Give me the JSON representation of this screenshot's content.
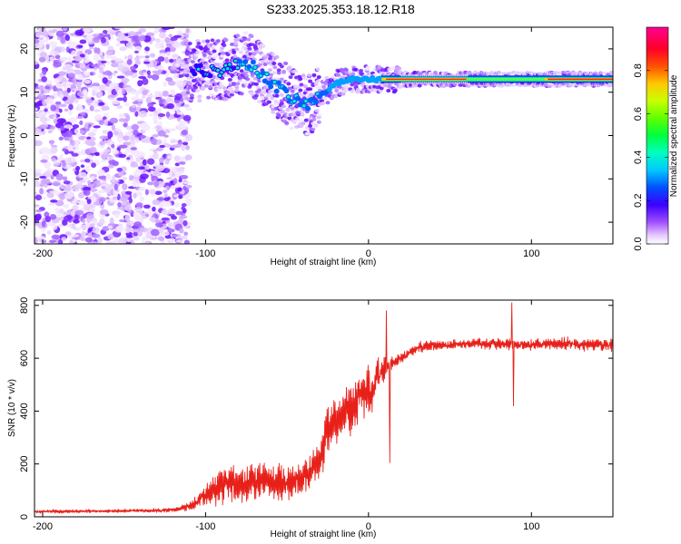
{
  "title": "S233.2025.353.18.12.R18",
  "colors": {
    "snr_line": "#e8201a",
    "axis": "#000000",
    "background": "#ffffff",
    "scatter": [
      "#ffffff",
      "#f0d8ff",
      "#d8a8ff",
      "#a860ff",
      "#7a14ff",
      "#4000ff",
      "#0040ff",
      "#00c0ff",
      "#00ff80",
      "#80ff00",
      "#ffd000",
      "#ff4000",
      "#ff0040",
      "#ff00c0"
    ]
  },
  "chart_data": [
    {
      "name": "spectrogram",
      "type": "heatmap",
      "xlabel": "Height of straight line (km)",
      "ylabel": "Frequency (Hz)",
      "xlim": [
        -205,
        150
      ],
      "ylim": [
        -25,
        25
      ],
      "x_ticks": [
        -200,
        -100,
        0,
        100
      ],
      "y_ticks": [
        -20,
        -10,
        0,
        10,
        20
      ],
      "colorbar": {
        "label": "Normalized spectral amplitude",
        "range": [
          0,
          1
        ],
        "ticks": [
          "0.0",
          "0.2",
          "0.4",
          "0.6",
          "0.8"
        ]
      },
      "features": [
        {
          "label": "broadband noise",
          "x_range": [
            -205,
            -110
          ],
          "freq_range": [
            -25,
            25
          ],
          "amplitude": 0.05
        },
        {
          "label": "signal track",
          "x": [
            -110,
            -90,
            -75,
            -65,
            -55,
            -45,
            -38,
            -30,
            -20,
            -10,
            0,
            20,
            60,
            100,
            150
          ],
          "freq": [
            15,
            15,
            17,
            14,
            11,
            8,
            7,
            9,
            12,
            13,
            13,
            13,
            13,
            13,
            13
          ]
        }
      ]
    },
    {
      "name": "snr",
      "type": "line",
      "xlabel": "Height of straight line (km)",
      "ylabel": "SNR (10 * v/v)",
      "xlim": [
        -205,
        150
      ],
      "ylim": [
        0,
        820
      ],
      "x_ticks": [
        -200,
        -100,
        0,
        100
      ],
      "y_ticks": [
        0,
        200,
        400,
        600,
        800
      ],
      "series": [
        {
          "name": "SNR",
          "envelope": {
            "x": [
              -205,
              -150,
              -120,
              -110,
              -100,
              -90,
              -80,
              -70,
              -60,
              -50,
              -40,
              -35,
              -30,
              -25,
              -20,
              -15,
              -10,
              -5,
              0,
              5,
              10,
              15,
              20,
              25,
              30,
              40,
              50,
              60,
              80,
              100,
              120,
              150
            ],
            "mean": [
              20,
              22,
              25,
              40,
              80,
              120,
              130,
              140,
              135,
              120,
              150,
              180,
              220,
              330,
              350,
              390,
              420,
              480,
              470,
              520,
              560,
              580,
              600,
              620,
              640,
              650,
              650,
              655,
              655,
              650,
              655,
              650
            ],
            "noise": [
              10,
              10,
              12,
              25,
              60,
              100,
              110,
              110,
              110,
              100,
              100,
              110,
              120,
              140,
              120,
              130,
              140,
              150,
              150,
              120,
              60,
              40,
              30,
              30,
              30,
              30,
              30,
              30,
              30,
              30,
              35,
              35
            ]
          },
          "spikes": [
            {
              "x": 11,
              "y": 780
            },
            {
              "x": 13,
              "y": 205
            },
            {
              "x": 88,
              "y": 810
            },
            {
              "x": 89,
              "y": 420
            }
          ]
        }
      ]
    }
  ]
}
